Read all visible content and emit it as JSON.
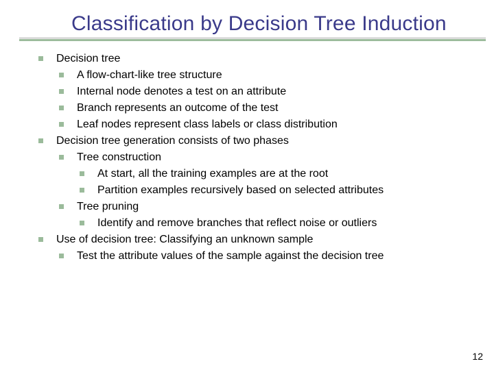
{
  "title": "Classification by Decision Tree Induction",
  "page_number": "12",
  "colors": {
    "title_color": "#3a3a8a",
    "bullet_color": "#9bbb9b",
    "underline_top": "#a8a8a8",
    "underline_bottom": "#9bbb9b",
    "text_color": "#000000",
    "background": "#ffffff"
  },
  "typography": {
    "title_font": "Comic Sans MS",
    "title_size_pt": 30,
    "body_font": "Verdana",
    "body_size_pt": 16
  },
  "items": [
    {
      "level": 1,
      "text": "Decision tree"
    },
    {
      "level": 2,
      "text": "A flow-chart-like tree structure"
    },
    {
      "level": 2,
      "text": "Internal node denotes a test on an attribute"
    },
    {
      "level": 2,
      "text": "Branch represents an outcome of the test"
    },
    {
      "level": 2,
      "text": "Leaf nodes represent class labels or class distribution"
    },
    {
      "level": 1,
      "text": "Decision tree generation consists of two phases"
    },
    {
      "level": 2,
      "text": "Tree construction"
    },
    {
      "level": 3,
      "text": "At start, all the training examples are at the root"
    },
    {
      "level": 3,
      "text": "Partition examples recursively based on selected attributes"
    },
    {
      "level": 2,
      "text": "Tree pruning"
    },
    {
      "level": 3,
      "text": "Identify and remove branches that reflect noise or outliers"
    },
    {
      "level": 1,
      "text": "Use of decision tree: Classifying an unknown sample"
    },
    {
      "level": 2,
      "text": "Test the attribute values of the sample against the decision tree"
    }
  ]
}
